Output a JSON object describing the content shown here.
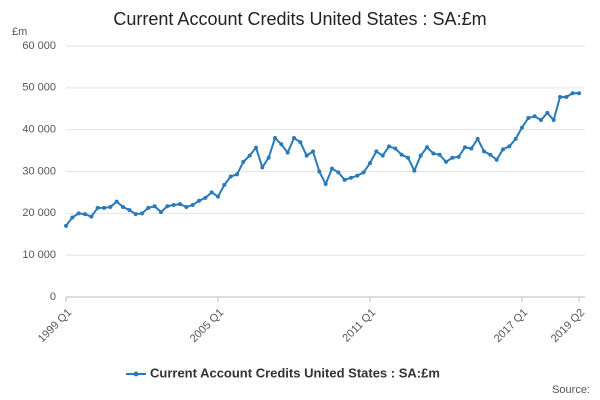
{
  "chart_data": {
    "type": "line",
    "title": "Current Account Credits United States : SA:£m",
    "y_unit": "£m",
    "source": "Source:",
    "categories": [
      "1999 Q1",
      null,
      null,
      null,
      null,
      null,
      null,
      null,
      null,
      null,
      null,
      null,
      null,
      null,
      null,
      null,
      null,
      null,
      null,
      null,
      null,
      null,
      null,
      null,
      "2005 Q1",
      null,
      null,
      null,
      null,
      null,
      null,
      null,
      null,
      null,
      null,
      null,
      null,
      null,
      null,
      null,
      null,
      null,
      null,
      null,
      null,
      null,
      null,
      null,
      "2011 Q1",
      null,
      null,
      null,
      null,
      null,
      null,
      null,
      null,
      null,
      null,
      null,
      null,
      null,
      null,
      null,
      null,
      null,
      null,
      null,
      null,
      null,
      null,
      null,
      "2017 Q1",
      null,
      null,
      null,
      null,
      null,
      null,
      null,
      null,
      "2019 Q2"
    ],
    "series": [
      {
        "name": "Current Account Credits United States : SA:£m",
        "color": "#2a7ab8",
        "values": [
          17000,
          19000,
          20000,
          19800,
          19200,
          21300,
          21300,
          21500,
          22800,
          21500,
          20800,
          19800,
          20000,
          21300,
          21700,
          20300,
          21700,
          22000,
          22200,
          21500,
          22000,
          23000,
          23700,
          25000,
          24000,
          26800,
          28800,
          29300,
          32300,
          33800,
          35700,
          31000,
          33300,
          38000,
          36500,
          34500,
          38000,
          37000,
          33800,
          34800,
          30000,
          27000,
          30700,
          29800,
          28000,
          28500,
          29000,
          29800,
          32000,
          34800,
          33800,
          36000,
          35500,
          34000,
          33300,
          30200,
          33800,
          35800,
          34300,
          34000,
          32300,
          33300,
          33500,
          35800,
          35500,
          37800,
          34800,
          34000,
          32800,
          35300,
          36000,
          37800,
          40500,
          42800,
          43200,
          42300,
          44000,
          42300,
          47800,
          47800,
          48700,
          48700
        ]
      }
    ],
    "ylim": [
      0,
      60000
    ],
    "yticks": [
      0,
      {
        "value": 10000,
        "label": "10 000"
      },
      {
        "value": 20000,
        "label": "20 000"
      },
      {
        "value": 30000,
        "label": "30 000"
      },
      {
        "value": 40000,
        "label": "40 000"
      },
      {
        "value": 50000,
        "label": "50 000"
      },
      {
        "value": 60000,
        "label": "60 000"
      }
    ],
    "grid": true
  }
}
